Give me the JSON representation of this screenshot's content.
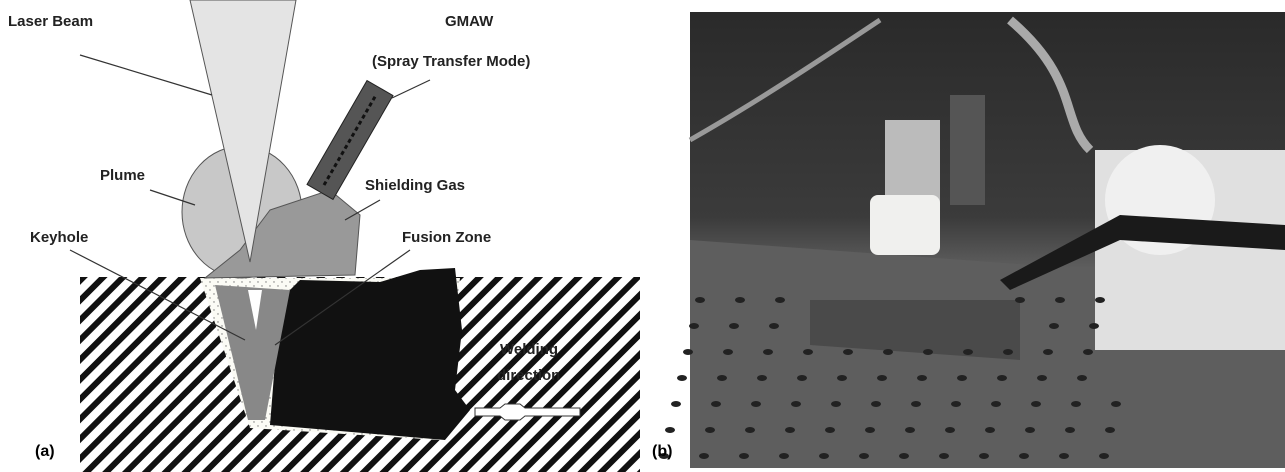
{
  "panel_a": {
    "caption": "(a)",
    "labels": [
      "Laser Beam",
      "GMAW",
      "(Spray Transfer Mode)",
      "Plume",
      "Shielding Gas",
      "Keyhole",
      "Fusion Zone",
      "Welding",
      "direction"
    ]
  },
  "panel_b": {
    "caption": "(b)"
  }
}
